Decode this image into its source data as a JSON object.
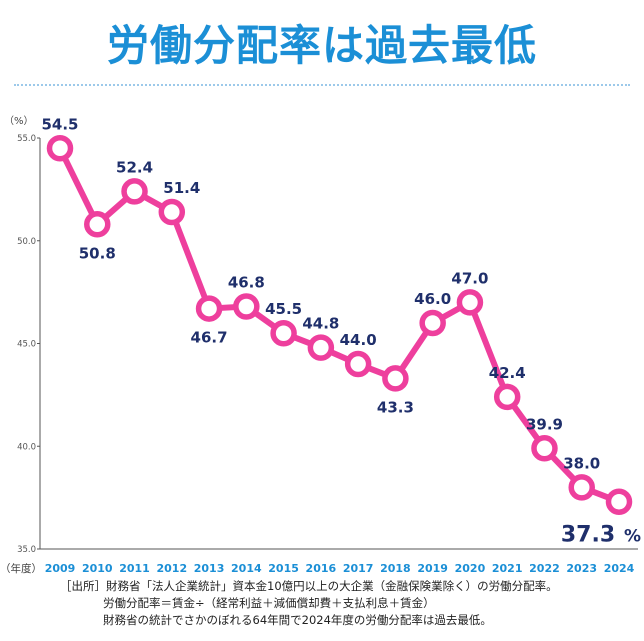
{
  "title": "労働分配率は過去最低",
  "chart_data": {
    "type": "line",
    "title": "労働分配率は過去最低",
    "y_unit_label": "（%）",
    "x_unit_label": "（年度）",
    "ylim": [
      35.0,
      55.0
    ],
    "yticks": [
      "35.0",
      "40.0",
      "45.0",
      "50.0",
      "55.0"
    ],
    "x": [
      "2009",
      "2010",
      "2011",
      "2012",
      "2013",
      "2014",
      "2015",
      "2016",
      "2017",
      "2018",
      "2019",
      "2020",
      "2021",
      "2022",
      "2023",
      "2024"
    ],
    "values": [
      54.5,
      50.8,
      52.4,
      51.4,
      46.7,
      46.8,
      45.5,
      44.8,
      44.0,
      43.3,
      46.0,
      47.0,
      42.4,
      39.9,
      38.0,
      37.3
    ],
    "labels": [
      "54.5",
      "50.8",
      "52.4",
      "51.4",
      "46.7",
      "46.8",
      "45.5",
      "44.8",
      "44.0",
      "43.3",
      "46.0",
      "47.0",
      "42.4",
      "39.9",
      "38.0",
      "37.3"
    ],
    "last_label_suffix": "%",
    "line_color": "#ee3f9d",
    "label_color": "#1f2f6b",
    "tick_color": "#1b8fd6"
  },
  "source": {
    "line1": "［出所］財務省「法人企業統計」資本金10億円以上の大企業（金融保険業除く）の労働分配率。",
    "line2": "労働分配率＝賃金÷（経常利益＋減価償却費＋支払利息＋賃金）",
    "line3": "財務省の統計でさかのぼれる64年間で2024年度の労働分配率は過去最低。"
  }
}
